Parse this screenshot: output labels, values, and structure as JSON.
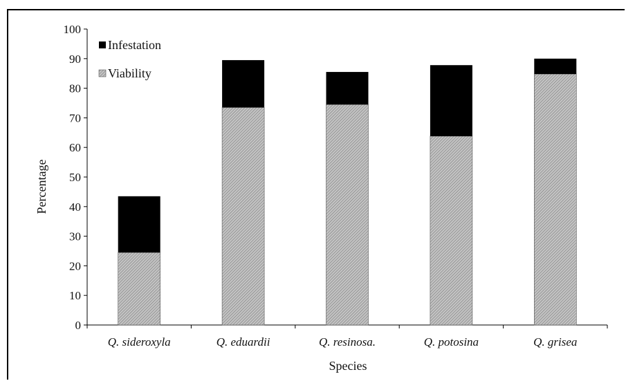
{
  "chart_data": {
    "type": "bar",
    "stacked": true,
    "categories": [
      "Q. sideroxyla",
      "Q. eduardii",
      "Q. resinosa.",
      "Q. potosina",
      "Q. grisea"
    ],
    "series": [
      {
        "name": "Viability",
        "values": [
          24.5,
          73.5,
          74.5,
          63.8,
          84.8
        ],
        "color": "#a8a8a8",
        "pattern": "fine-hatch"
      },
      {
        "name": "Infestation",
        "values": [
          19.0,
          16.0,
          11.0,
          24.0,
          5.2
        ],
        "color": "#000000"
      }
    ],
    "title": "",
    "xlabel": "Species",
    "ylabel": "Percentage",
    "ylim": [
      0,
      100
    ],
    "yticks": [
      0,
      10,
      20,
      30,
      40,
      50,
      60,
      70,
      80,
      90,
      100
    ],
    "grid": false,
    "legend": {
      "position": "top-left",
      "order": [
        "Infestation",
        "Viability"
      ]
    }
  }
}
